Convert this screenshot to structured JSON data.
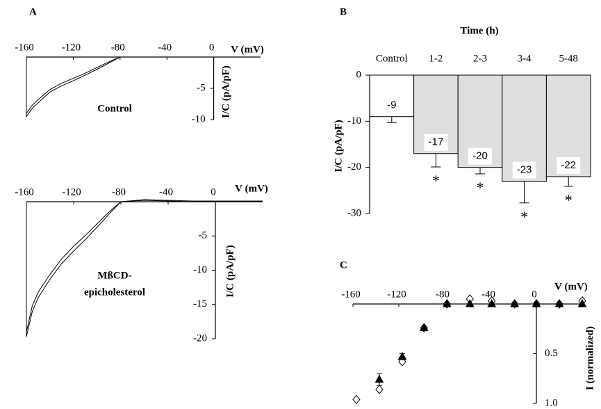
{
  "chart_data": [
    {
      "type": "line",
      "panel": "A",
      "annotations": [
        "Control"
      ],
      "x": [
        -160,
        -160,
        -155,
        -150,
        -140,
        -130,
        -120,
        -110,
        -100,
        -90,
        -80,
        -60,
        -40,
        -20,
        0,
        20,
        40
      ],
      "series": [
        {
          "color": "#000000",
          "values": [
            0,
            -9.5,
            -8.2,
            -7.3,
            -5.6,
            -4.6,
            -3.8,
            -2.9,
            -2.0,
            -1.0,
            0,
            0,
            0,
            0,
            0,
            0,
            0
          ]
        },
        {
          "color": "#000000",
          "values": [
            0,
            -9.0,
            -7.7,
            -6.8,
            -5.2,
            -4.2,
            -3.4,
            -2.6,
            -1.7,
            -0.8,
            0,
            0,
            0,
            0,
            0,
            0,
            0
          ]
        }
      ],
      "xlim": [
        -160,
        40
      ],
      "xticks": [
        -160,
        -120,
        -80,
        -40,
        0
      ],
      "xlabel": "V (mV)",
      "ylim": [
        -10,
        0
      ],
      "yticks": [
        -5,
        -10
      ],
      "ylabel": "I/C (pA/pF)"
    },
    {
      "type": "line",
      "annotations": [
        "MßCD-",
        "epicholesterol"
      ],
      "x": [
        -160,
        -160,
        -155,
        -150,
        -140,
        -130,
        -120,
        -110,
        -100,
        -90,
        -80,
        -60,
        -40,
        -20,
        0,
        20,
        40
      ],
      "series": [
        {
          "color": "#000000",
          "values": [
            0,
            -19.7,
            -16,
            -14,
            -11.3,
            -9,
            -7.2,
            -5.5,
            -3.7,
            -1.8,
            0,
            0.3,
            0.2,
            0.1,
            0.1,
            0.1,
            0.1
          ]
        },
        {
          "color": "#000000",
          "values": [
            0,
            -19,
            -15.2,
            -13.2,
            -10.6,
            -8.3,
            -6.5,
            -4.9,
            -3.2,
            -1.5,
            0,
            0.2,
            0.1,
            0,
            0,
            0,
            0
          ]
        }
      ],
      "xlim": [
        -160,
        40
      ],
      "xticks": [
        -160,
        -120,
        -80,
        -40,
        0
      ],
      "xlabel": "V (mV)",
      "ylim": [
        -20,
        0
      ],
      "yticks": [
        -5,
        -10,
        -15,
        -20
      ],
      "ylabel": "I/C (pA/pF)"
    },
    {
      "type": "bar",
      "panel": "B",
      "title": "Time (h)",
      "categories": [
        "Control",
        "1-2",
        "2-3",
        "3-4",
        "5-48"
      ],
      "values": [
        -9,
        -17,
        -20,
        -23,
        -22
      ],
      "errors": [
        1.3,
        2.9,
        1.4,
        4.7,
        2.1
      ],
      "markers": [
        null,
        "*",
        "*",
        "*",
        "*"
      ],
      "colors": [
        "#ffffff",
        "#dedede",
        "#dedede",
        "#dedede",
        "#dedede"
      ],
      "ylim": [
        -30,
        0
      ],
      "yticks": [
        0,
        -10,
        -20,
        -30
      ],
      "ylabel": "I/C (pA/pF)"
    },
    {
      "type": "scatter",
      "panel": "C",
      "y_inverted": true,
      "x": [
        -157,
        -137,
        -117,
        -98,
        -78,
        -58,
        -39,
        -19,
        0,
        20,
        40
      ],
      "series": [
        {
          "color": "#000000",
          "marker": "diamond",
          "filled": false,
          "values": [
            0.96,
            0.86,
            0.58,
            0.24,
            0,
            -0.05,
            -0.03,
            0,
            0,
            0,
            -0.03
          ]
        },
        {
          "color": "#000000",
          "marker": "triangle",
          "filled": true,
          "values": [
            null,
            0.76,
            0.53,
            0.24,
            0,
            0,
            0,
            0,
            0,
            0,
            0
          ],
          "errors": [
            null,
            0.06,
            0.03,
            null,
            null,
            null,
            null,
            null,
            null,
            null,
            null
          ]
        }
      ],
      "xlim": [
        -160,
        40
      ],
      "xticks": [
        -160,
        -120,
        -80,
        -40,
        0
      ],
      "xlabel": "V (mV)",
      "ylim": [
        0,
        1
      ],
      "yticks": [
        {
          "value": 0.5,
          "label": "0.5"
        },
        {
          "value": 1,
          "label": "1.0"
        }
      ],
      "ylabel": "I (normalized)"
    }
  ]
}
